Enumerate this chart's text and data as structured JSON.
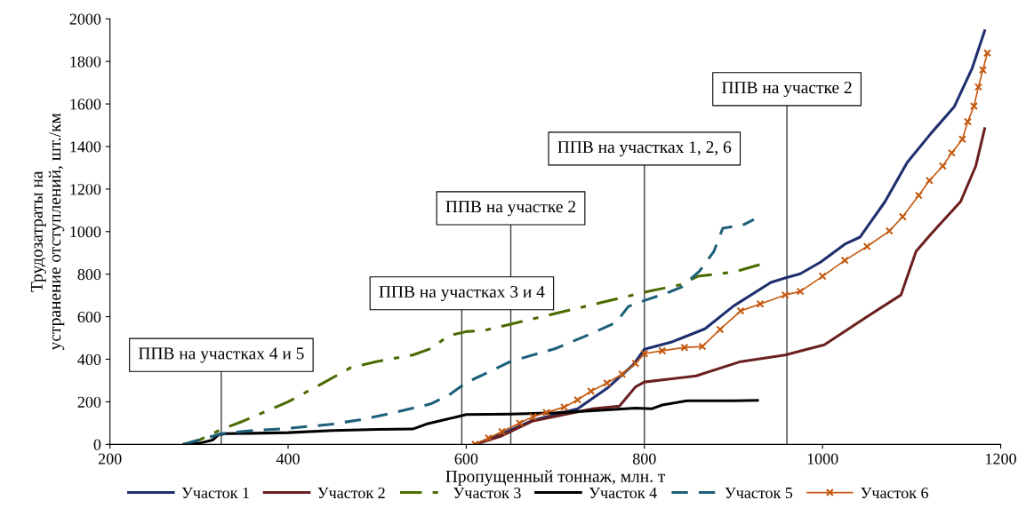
{
  "chart_data": {
    "type": "line",
    "xlabel": "Пропущенный тоннаж, млн. т",
    "ylabel": "Трудозатраты на\nустранение отступлений, шт./км",
    "xlim": [
      200,
      1200
    ],
    "xticks": [
      200,
      400,
      600,
      800,
      1000,
      1200
    ],
    "ylim": [
      0,
      2000
    ],
    "yticks": [
      0,
      200,
      400,
      600,
      800,
      1000,
      1200,
      1400,
      1600,
      1800,
      2000
    ],
    "grid": false,
    "legend": "bottom",
    "ref_lines": [
      {
        "axis": "x",
        "value": 325,
        "label": "ППВ на участках 4 и 5",
        "color": "#404040"
      },
      {
        "axis": "x",
        "value": 595,
        "label": "ППВ на участках 3 и 4",
        "color": "#404040"
      },
      {
        "axis": "x",
        "value": 650,
        "label": "ППВ на участке 2",
        "color": "#404040"
      },
      {
        "axis": "x",
        "value": 800,
        "label": "ППВ на участках 1, 2, 6",
        "color": "#404040"
      },
      {
        "axis": "x",
        "value": 960,
        "label": "ППВ на участке 2",
        "color": "#404040"
      }
    ],
    "series": [
      {
        "name": "Участок 1",
        "color": "#1f2f6e",
        "line_style": "solid",
        "x": [
          610,
          640,
          675,
          700,
          725,
          758,
          788,
          800,
          830,
          868,
          900,
          942,
          958,
          975,
          998,
          1025,
          1042,
          1070,
          1095,
          1122,
          1148,
          1168,
          1182
        ],
        "values": [
          0,
          50,
          113,
          140,
          167,
          263,
          376,
          447,
          480,
          543,
          650,
          761,
          782,
          802,
          857,
          941,
          974,
          1140,
          1325,
          1463,
          1588,
          1768,
          1944
        ]
      },
      {
        "name": "Участок 2",
        "color": "#6b2020",
        "line_style": "solid",
        "x": [
          610,
          640,
          675,
          742,
          772,
          790,
          800,
          858,
          908,
          958,
          975,
          1002,
          1052,
          1088,
          1105,
          1122,
          1155,
          1172,
          1182
        ],
        "values": [
          0,
          40,
          110,
          167,
          180,
          270,
          293,
          322,
          389,
          420,
          439,
          468,
          606,
          702,
          907,
          990,
          1141,
          1308,
          1484
        ]
      },
      {
        "name": "Участок 3",
        "color": "#4b6b00",
        "line_style": "dashdot",
        "x": [
          283,
          300,
          325,
          350,
          400,
          440,
          470,
          500,
          540,
          560,
          580,
          600,
          620,
          650,
          700,
          750,
          800,
          840,
          860,
          900,
          930
        ],
        "values": [
          0,
          20,
          70,
          110,
          200,
          290,
          360,
          390,
          420,
          450,
          510,
          530,
          535,
          565,
          615,
          665,
          715,
          750,
          790,
          810,
          845
        ]
      },
      {
        "name": "Участок 4",
        "color": "#000000",
        "line_style": "solid",
        "x": [
          283,
          300,
          315,
          322,
          330,
          360,
          400,
          450,
          500,
          540,
          555,
          575,
          590,
          600,
          650,
          700,
          750,
          790,
          808,
          820,
          848,
          900,
          927
        ],
        "values": [
          0,
          5,
          20,
          45,
          50,
          52,
          55,
          65,
          70,
          72,
          95,
          115,
          130,
          140,
          142,
          148,
          160,
          170,
          167,
          185,
          205,
          205,
          207
        ]
      },
      {
        "name": "Участок 5",
        "color": "#1d5f7a",
        "line_style": "dashed",
        "x": [
          283,
          325,
          360,
          400,
          450,
          480,
          520,
          560,
          580,
          600,
          620,
          650,
          700,
          740,
          768,
          782,
          800,
          825,
          842,
          862,
          878,
          888,
          910,
          923
        ],
        "values": [
          0,
          50,
          65,
          75,
          95,
          115,
          150,
          190,
          230,
          290,
          330,
          390,
          450,
          520,
          572,
          648,
          676,
          711,
          740,
          815,
          907,
          1016,
          1030,
          1057
        ]
      },
      {
        "name": "Участок 6",
        "color": "#c55a11",
        "line_style": "solid",
        "marker": "cross",
        "x": [
          610,
          625,
          640,
          660,
          675,
          690,
          710,
          725,
          740,
          758,
          775,
          790,
          800,
          820,
          845,
          865,
          885,
          908,
          930,
          958,
          975,
          1000,
          1025,
          1050,
          1075,
          1090,
          1108,
          1120,
          1135,
          1145,
          1157,
          1163,
          1170,
          1175,
          1180,
          1185
        ],
        "values": [
          0,
          30,
          60,
          100,
          130,
          150,
          175,
          209,
          250,
          288,
          330,
          380,
          426,
          440,
          455,
          460,
          540,
          627,
          660,
          702,
          719,
          790,
          865,
          930,
          1003,
          1070,
          1170,
          1240,
          1308,
          1370,
          1434,
          1517,
          1590,
          1680,
          1760,
          1839
        ]
      }
    ]
  }
}
